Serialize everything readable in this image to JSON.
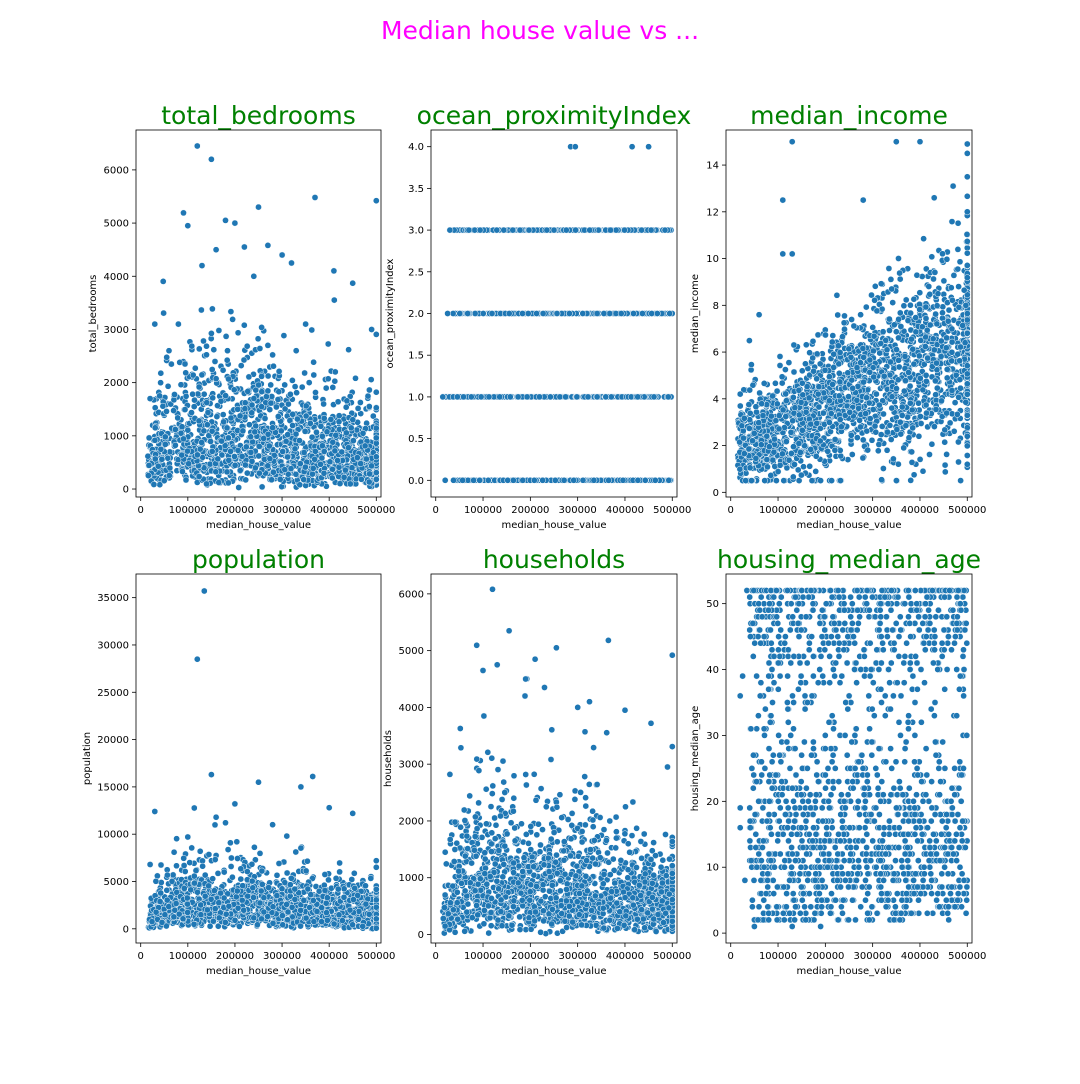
{
  "figure": {
    "suptitle": "Median house value vs ...",
    "title_color": "#008000",
    "suptitle_color": "#ff00ff",
    "point_color": "#1f77b4"
  },
  "chart_data": [
    {
      "type": "scatter",
      "title": "total_bedrooms",
      "xlabel": "median_house_value",
      "ylabel": "total_bedrooms",
      "xlim": [
        -10000,
        510000
      ],
      "ylim": [
        -150,
        6750
      ],
      "xticks": [
        0,
        100000,
        200000,
        300000,
        400000,
        500000
      ],
      "yticks": [
        0,
        1000,
        2000,
        3000,
        4000,
        5000,
        6000
      ],
      "dense": {
        "kind": "count",
        "y_base": 200,
        "y_peak": 1400,
        "y_tail": 800
      },
      "points": [
        [
          120000,
          6450
        ],
        [
          150000,
          6200
        ],
        [
          100000,
          4950
        ],
        [
          180000,
          5050
        ],
        [
          200000,
          5000
        ],
        [
          250000,
          5300
        ],
        [
          370000,
          5480
        ],
        [
          500000,
          5420
        ],
        [
          160000,
          4500
        ],
        [
          220000,
          4550
        ],
        [
          270000,
          4580
        ],
        [
          300000,
          4400
        ],
        [
          410000,
          4100
        ],
        [
          450000,
          3870
        ],
        [
          130000,
          4200
        ],
        [
          240000,
          4000
        ],
        [
          320000,
          4250
        ],
        [
          30000,
          3100
        ],
        [
          80000,
          3100
        ],
        [
          490000,
          3000
        ],
        [
          350000,
          3100
        ],
        [
          60000,
          2600
        ],
        [
          40000,
          1750
        ],
        [
          20000,
          1700
        ],
        [
          270000,
          2700
        ],
        [
          330000,
          2600
        ]
      ]
    },
    {
      "type": "scatter",
      "title": "ocean_proximityIndex",
      "xlabel": "median_house_value",
      "ylabel": "ocean_proximityIndex",
      "xlim": [
        -10000,
        510000
      ],
      "ylim": [
        -0.2,
        4.2
      ],
      "xticks": [
        0,
        100000,
        200000,
        300000,
        400000,
        500000
      ],
      "yticks": [
        0.0,
        0.5,
        1.0,
        1.5,
        2.0,
        2.5,
        3.0,
        3.5,
        4.0
      ],
      "dense": {
        "kind": "categorical",
        "levels": [
          0,
          1,
          2,
          3
        ]
      },
      "points": [
        [
          285000,
          4.0
        ],
        [
          295000,
          4.0
        ],
        [
          415000,
          4.0
        ],
        [
          450000,
          4.0
        ],
        [
          15000,
          1.0
        ],
        [
          20000,
          0.0
        ],
        [
          25000,
          2.0
        ],
        [
          30000,
          3.0
        ]
      ]
    },
    {
      "type": "scatter",
      "title": "median_income",
      "xlabel": "median_house_value",
      "ylabel": "median_income",
      "xlim": [
        -10000,
        510000
      ],
      "ylim": [
        -0.2,
        15.5
      ],
      "xticks": [
        0,
        100000,
        200000,
        300000,
        400000,
        500000
      ],
      "yticks": [
        0,
        2,
        4,
        6,
        8,
        10,
        12,
        14
      ],
      "dense": {
        "kind": "income"
      },
      "points": [
        [
          130000,
          15.0
        ],
        [
          350000,
          15.0
        ],
        [
          400000,
          15.0
        ],
        [
          110000,
          12.5
        ],
        [
          280000,
          12.5
        ],
        [
          430000,
          12.6
        ],
        [
          470000,
          13.1
        ],
        [
          110000,
          10.2
        ],
        [
          130000,
          10.2
        ],
        [
          60000,
          7.6
        ],
        [
          20000,
          4.2
        ],
        [
          500000,
          14.9
        ],
        [
          500000,
          14.5
        ],
        [
          500000,
          13.5
        ],
        [
          500000,
          12.0
        ]
      ]
    },
    {
      "type": "scatter",
      "title": "population",
      "xlabel": "median_house_value",
      "ylabel": "population",
      "xlim": [
        -10000,
        510000
      ],
      "ylim": [
        -1500,
        37500
      ],
      "xticks": [
        0,
        100000,
        200000,
        300000,
        400000,
        500000
      ],
      "yticks": [
        0,
        5000,
        10000,
        15000,
        20000,
        25000,
        30000,
        35000
      ],
      "dense": {
        "kind": "count",
        "y_base": 600,
        "y_peak": 3600,
        "y_tail": 2200
      },
      "points": [
        [
          135000,
          35700
        ],
        [
          120000,
          28500
        ],
        [
          150000,
          16300
        ],
        [
          250000,
          15500
        ],
        [
          365000,
          16100
        ],
        [
          340000,
          15000
        ],
        [
          30000,
          12400
        ],
        [
          200000,
          13200
        ],
        [
          400000,
          12800
        ],
        [
          450000,
          12200
        ],
        [
          180000,
          11200
        ],
        [
          280000,
          11000
        ],
        [
          160000,
          11800
        ],
        [
          310000,
          9800
        ],
        [
          100000,
          9700
        ],
        [
          20000,
          6800
        ],
        [
          500000,
          7200
        ],
        [
          500000,
          6500
        ]
      ]
    },
    {
      "type": "scatter",
      "title": "households",
      "xlabel": "median_house_value",
      "ylabel": "households",
      "xlim": [
        -10000,
        510000
      ],
      "ylim": [
        -150,
        6350
      ],
      "xticks": [
        0,
        100000,
        200000,
        300000,
        400000,
        500000
      ],
      "yticks": [
        0,
        1000,
        2000,
        3000,
        4000,
        5000,
        6000
      ],
      "dense": {
        "kind": "count",
        "y_base": 180,
        "y_peak": 1300,
        "y_tail": 750
      },
      "points": [
        [
          120000,
          6080
        ],
        [
          155000,
          5350
        ],
        [
          365000,
          5180
        ],
        [
          500000,
          4920
        ],
        [
          130000,
          4750
        ],
        [
          255000,
          5050
        ],
        [
          210000,
          4850
        ],
        [
          100000,
          4650
        ],
        [
          190000,
          4500
        ],
        [
          230000,
          4350
        ],
        [
          300000,
          4000
        ],
        [
          325000,
          4100
        ],
        [
          400000,
          3950
        ],
        [
          455000,
          3720
        ],
        [
          30000,
          2820
        ],
        [
          490000,
          2950
        ],
        [
          20000,
          1450
        ]
      ]
    },
    {
      "type": "scatter",
      "title": "housing_median_age",
      "xlabel": "median_house_value",
      "ylabel": "housing_median_age",
      "xlim": [
        -10000,
        510000
      ],
      "ylim": [
        -1.5,
        54.5
      ],
      "xticks": [
        0,
        100000,
        200000,
        300000,
        400000,
        500000
      ],
      "yticks": [
        0,
        10,
        20,
        30,
        40,
        50
      ],
      "dense": {
        "kind": "age"
      },
      "points": [
        [
          190000,
          1
        ],
        [
          130000,
          1
        ],
        [
          50000,
          1
        ],
        [
          30000,
          8
        ],
        [
          20000,
          16
        ],
        [
          20000,
          19
        ],
        [
          20000,
          36
        ],
        [
          25000,
          39
        ],
        [
          40000,
          46
        ]
      ]
    }
  ]
}
